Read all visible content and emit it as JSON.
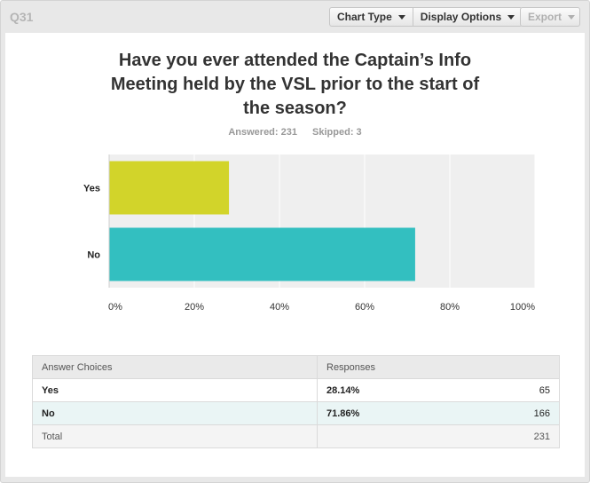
{
  "header": {
    "question_number": "Q31",
    "chart_type_label": "Chart Type",
    "display_options_label": "Display Options",
    "export_label": "Export"
  },
  "question": {
    "title_lines": [
      "Have you ever attended the Captain’s Info",
      "Meeting held by the VSL prior to the start of",
      "the season?"
    ],
    "answered": "Answered: 231",
    "skipped": "Skipped: 3"
  },
  "chart_data": {
    "type": "bar",
    "orientation": "horizontal",
    "categories": [
      "Yes",
      "No"
    ],
    "values": [
      28.14,
      71.86
    ],
    "colors": [
      "#d2d42a",
      "#33bfc0"
    ],
    "xlim": [
      0,
      100
    ],
    "xticks": [
      "0%",
      "20%",
      "40%",
      "60%",
      "80%",
      "100%"
    ],
    "grid": true
  },
  "table": {
    "headers": [
      "Answer Choices",
      "Responses"
    ],
    "rows": [
      {
        "choice": "Yes",
        "percent": "28.14%",
        "count": "65"
      },
      {
        "choice": "No",
        "percent": "71.86%",
        "count": "166"
      }
    ],
    "total_label": "Total",
    "total_count": "231"
  }
}
